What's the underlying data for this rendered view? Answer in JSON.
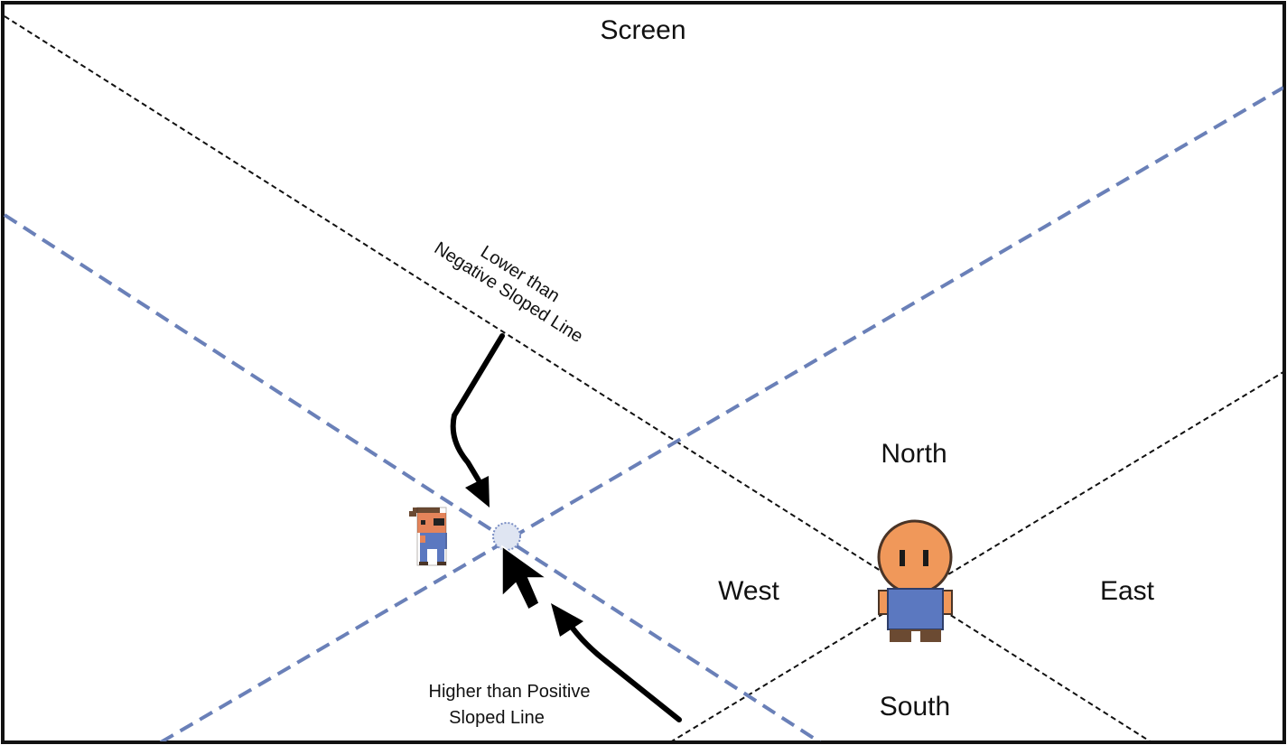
{
  "diagram": {
    "frame_title": "Screen",
    "regions": {
      "north": "North",
      "south": "South",
      "east": "East",
      "west": "West"
    },
    "annotations": {
      "lower_line1": "Lower than",
      "lower_line2": "Negative Sloped Line",
      "higher_line1": "Higher than Positive",
      "higher_line2": "Sloped Line"
    },
    "colors": {
      "frame": "#111111",
      "black_dashed_lines": "#111111",
      "blue_dashed_lines": "#6a80b8",
      "arrow": "#000000",
      "character_skin": "#f0985a",
      "character_shirt": "#5b78c0",
      "character_pants": "#6b4a32"
    },
    "icons": {
      "player": "player-character-icon",
      "enemy": "enemy-character-icon",
      "cursor": "mouse-cursor-icon",
      "click": "click-point-icon"
    }
  }
}
